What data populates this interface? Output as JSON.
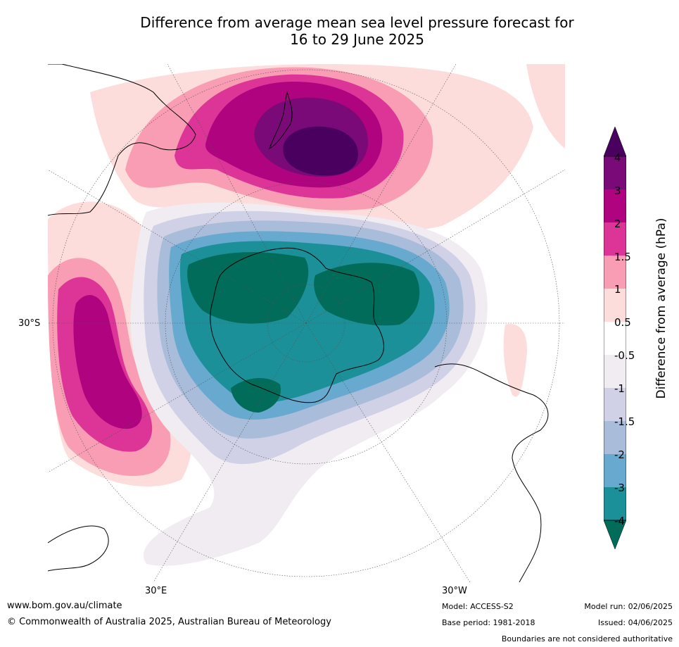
{
  "title_line1": "Difference from average mean sea level pressure forecast for",
  "title_line2": "16 to 29 June 2025",
  "axis_labels": {
    "lat_left": "30°S",
    "lon_bottom_left": "30°E",
    "lon_bottom_right": "30°W"
  },
  "colorbar": {
    "label": "Difference from average (hPa)",
    "ticks": [
      "4",
      "3",
      "2",
      "1.5",
      "1",
      "0.5",
      "-0.5",
      "-1",
      "-1.5",
      "-2",
      "-3",
      "-4"
    ],
    "colors": [
      "#4a005f",
      "#7a0a78",
      "#b0037f",
      "#dc3597",
      "#f89db3",
      "#fddcdc",
      "#ffffff",
      "#f1ecf2",
      "#d0d1e6",
      "#a9bcd9",
      "#67a9cf",
      "#1c9099",
      "#016c59"
    ]
  },
  "footer": {
    "website": "www.bom.gov.au/climate",
    "copyright": "© Commonwealth of Australia 2025, Australian Bureau of Meteorology",
    "model": "Model: ACCESS-S2",
    "base_period": "Base period: 1981-2018",
    "model_run": "Model run: 02/06/2025",
    "issued": "Issued: 04/06/2025",
    "disclaimer": "Boundaries are not considered authoritative"
  }
}
